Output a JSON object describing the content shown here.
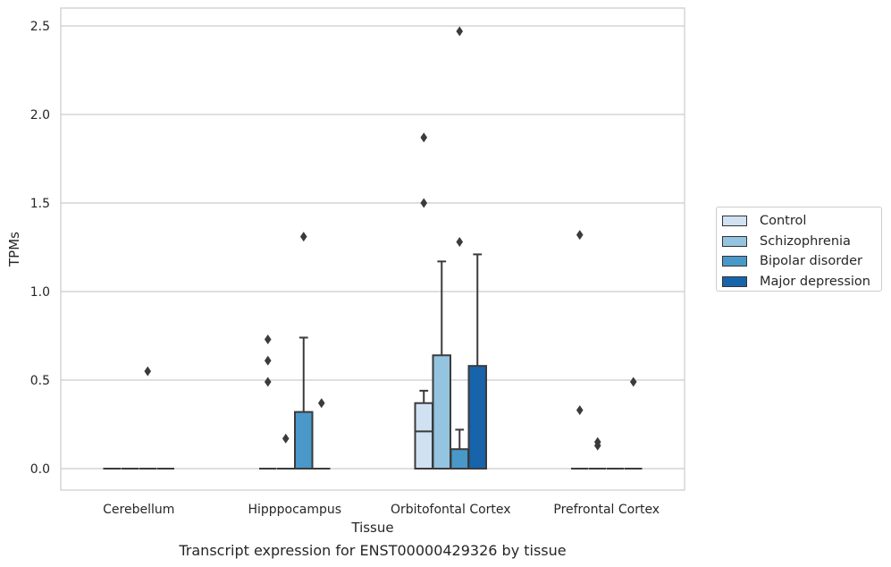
{
  "caption": "Transcript expression for ENST00000429326 by tissue",
  "chart_data": {
    "type": "boxplot",
    "title": "",
    "xlabel": "Tissue",
    "ylabel": "TPMs",
    "ylim": [
      -0.12,
      2.6
    ],
    "yticks": [
      0.0,
      0.5,
      1.0,
      1.5,
      2.0,
      2.5
    ],
    "ytick_labels": [
      "0.0",
      "0.5",
      "1.0",
      "1.5",
      "2.0",
      "2.5"
    ],
    "grid": "horizontal",
    "legend_position": "right",
    "categories": [
      "Cerebellum",
      "Hipppocampus",
      "Orbitofontal Cortex",
      "Prefrontal Cortex"
    ],
    "series": [
      {
        "name": "Control",
        "color": "#d0e1f2",
        "boxes": [
          {
            "q1": 0,
            "median": 0,
            "q3": 0,
            "whisker_low": 0,
            "whisker_high": 0,
            "outliers": []
          },
          {
            "q1": 0,
            "median": 0,
            "q3": 0,
            "whisker_low": 0,
            "whisker_high": 0,
            "outliers": [
              0.49,
              0.61,
              0.73
            ]
          },
          {
            "q1": 0,
            "median": 0.21,
            "q3": 0.37,
            "whisker_low": 0,
            "whisker_high": 0.44,
            "outliers": [
              1.5,
              1.87
            ]
          },
          {
            "q1": 0,
            "median": 0,
            "q3": 0,
            "whisker_low": 0,
            "whisker_high": 0,
            "outliers": [
              0.33,
              1.32
            ]
          }
        ]
      },
      {
        "name": "Schizophrenia",
        "color": "#94c4df",
        "boxes": [
          {
            "q1": 0,
            "median": 0,
            "q3": 0,
            "whisker_low": 0,
            "whisker_high": 0,
            "outliers": []
          },
          {
            "q1": 0,
            "median": 0,
            "q3": 0,
            "whisker_low": 0,
            "whisker_high": 0,
            "outliers": [
              0.17
            ]
          },
          {
            "q1": 0,
            "median": 0,
            "q3": 0.64,
            "whisker_low": 0,
            "whisker_high": 1.17,
            "outliers": []
          },
          {
            "q1": 0,
            "median": 0,
            "q3": 0,
            "whisker_low": 0,
            "whisker_high": 0,
            "outliers": [
              0.13,
              0.15
            ]
          }
        ]
      },
      {
        "name": "Bipolar disorder",
        "color": "#4a98c9",
        "boxes": [
          {
            "q1": 0,
            "median": 0,
            "q3": 0,
            "whisker_low": 0,
            "whisker_high": 0,
            "outliers": [
              0.55
            ]
          },
          {
            "q1": 0,
            "median": 0,
            "q3": 0.32,
            "whisker_low": 0,
            "whisker_high": 0.74,
            "outliers": [
              1.31
            ]
          },
          {
            "q1": 0,
            "median": 0,
            "q3": 0.11,
            "whisker_low": 0,
            "whisker_high": 0.22,
            "outliers": [
              1.28,
              2.47
            ]
          },
          {
            "q1": 0,
            "median": 0,
            "q3": 0,
            "whisker_low": 0,
            "whisker_high": 0,
            "outliers": []
          }
        ]
      },
      {
        "name": "Major depression",
        "color": "#1764ab",
        "boxes": [
          {
            "q1": 0,
            "median": 0,
            "q3": 0,
            "whisker_low": 0,
            "whisker_high": 0,
            "outliers": []
          },
          {
            "q1": 0,
            "median": 0,
            "q3": 0,
            "whisker_low": 0,
            "whisker_high": 0,
            "outliers": [
              0.37
            ]
          },
          {
            "q1": 0,
            "median": 0,
            "q3": 0.58,
            "whisker_low": 0,
            "whisker_high": 1.21,
            "outliers": []
          },
          {
            "q1": 0,
            "median": 0,
            "q3": 0,
            "whisker_low": 0,
            "whisker_high": 0,
            "outliers": [
              0.49
            ]
          }
        ]
      }
    ]
  }
}
